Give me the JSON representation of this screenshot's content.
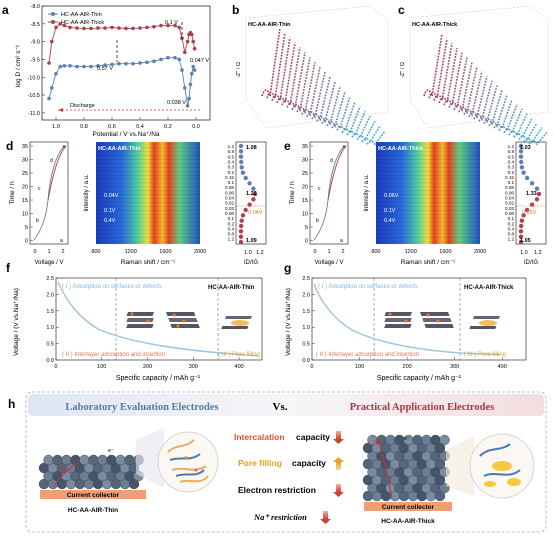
{
  "panels": {
    "a": "a",
    "b": "b",
    "c": "c",
    "d": "d",
    "e": "e",
    "f": "f",
    "g": "g",
    "h": "h"
  },
  "colors": {
    "thin": "#5b7fb0",
    "thick": "#b04050",
    "orange": "#e07a30",
    "bluebar": "#6f8fbf",
    "redbar": "#b03a4a"
  },
  "panel_a": {
    "legend_thin": "HC-AA-AIR-Thin",
    "legend_thick": "HC-AA-AIR-Thick",
    "ylabel": "log D / cm² s⁻¹",
    "xlabel": "Potential / V vs.Na⁺/Na",
    "annot_01": "0.1 V",
    "annot_057": "0.57 V",
    "annot_0047": "0.047 V",
    "annot_0038": "0.038 V",
    "discharge": "Discharge"
  },
  "chart_data": [
    {
      "type": "line",
      "title": "",
      "xlabel": "Potential / V vs.Na⁺/Na",
      "ylabel": "log D / cm² s⁻¹",
      "xlim": [
        1.1,
        -0.1
      ],
      "ylim": [
        -11.2,
        -8.0
      ],
      "x_ticks": [
        "1.0",
        "0.8",
        "0.6",
        "0.4",
        "0.2",
        "0.0"
      ],
      "y_ticks": [
        "-8.0",
        "-8.5",
        "-9.0",
        "-9.5",
        "-10.0",
        "-10.5",
        "-11.0"
      ],
      "series": [
        {
          "name": "HC-AA-AIR-Thick",
          "x": [
            1.05,
            1.03,
            1.0,
            0.97,
            0.94,
            0.9,
            0.85,
            0.8,
            0.75,
            0.7,
            0.65,
            0.6,
            0.55,
            0.5,
            0.45,
            0.4,
            0.35,
            0.3,
            0.25,
            0.2,
            0.15,
            0.12,
            0.1,
            0.08,
            0.06,
            0.05,
            0.04,
            0.03,
            0.02,
            0.01
          ],
          "y": [
            -9.6,
            -9.0,
            -8.6,
            -8.5,
            -8.55,
            -8.6,
            -8.62,
            -8.63,
            -8.63,
            -8.62,
            -8.62,
            -8.6,
            -8.62,
            -8.63,
            -8.63,
            -8.62,
            -8.6,
            -8.58,
            -8.55,
            -8.55,
            -8.55,
            -8.6,
            -8.9,
            -9.3,
            -9.0,
            -8.8,
            -8.75,
            -8.8,
            -9.0,
            -9.2
          ]
        },
        {
          "name": "HC-AA-AIR-Thin",
          "x": [
            1.05,
            1.03,
            1.0,
            0.97,
            0.94,
            0.9,
            0.85,
            0.8,
            0.75,
            0.7,
            0.65,
            0.6,
            0.55,
            0.5,
            0.45,
            0.4,
            0.35,
            0.3,
            0.25,
            0.2,
            0.15,
            0.12,
            0.1,
            0.08,
            0.06,
            0.05,
            0.04,
            0.03,
            0.02,
            0.01
          ],
          "y": [
            -10.6,
            -10.3,
            -9.9,
            -9.7,
            -9.68,
            -9.68,
            -9.7,
            -9.7,
            -9.7,
            -9.68,
            -9.66,
            -9.64,
            -9.62,
            -9.62,
            -9.62,
            -9.6,
            -9.58,
            -9.55,
            -9.5,
            -9.45,
            -9.45,
            -9.5,
            -9.8,
            -10.3,
            -10.8,
            -10.6,
            -10.2,
            -9.9,
            -9.7,
            -9.8
          ]
        }
      ]
    }
  ],
  "panel_b": {
    "label": "HC-AA-AIR-Thin",
    "ylabel": "-Z'' / Ω"
  },
  "panel_c": {
    "label": "HC-AA-AIR-Thick",
    "ylabel": "-Z'' / Ω"
  },
  "panel_d": {
    "map_label": "HC-AA-AIR-Thin",
    "time_label": "Time / h",
    "volt_label": "Voltage / V",
    "raman_label": "Raman shift / cm⁻¹",
    "intensity_label": "Intensity / a.u.",
    "idig_label": "ID/IG",
    "v1": "0.04V",
    "v2": "0.1V",
    "v3": "0.4V",
    "r1": "1.08",
    "r2": "1.22",
    "r3": "1.09",
    "rv": "0.04V",
    "time_ticks": [
      "35",
      "30",
      "25",
      "20",
      "15",
      "10",
      "5",
      "0"
    ],
    "volt_ticks": [
      "0",
      "1",
      "2"
    ],
    "raman_ticks": [
      "800",
      "1200",
      "1600",
      "2000"
    ],
    "idig_ticks": [
      "1.0",
      "1.2"
    ],
    "vseries": [
      "1.2",
      "0.8",
      "0.6",
      "0.4",
      "0.3",
      "0.2",
      "0.15",
      "0.1",
      "0.08",
      "0.06",
      "0.04",
      "0.02",
      "0.03",
      "0.06",
      "0.1",
      "0.2",
      "0.4",
      "0.8",
      "1.2"
    ]
  },
  "panel_e": {
    "map_label": "HC-AA-AIR-Thick",
    "v1": "0.06V",
    "v2": "0.1V",
    "v3": "0.4V",
    "r1": "1.03",
    "r2": "1.33",
    "r3": "1.05",
    "rv": "0.05V"
  },
  "panel_f": {
    "ylabel": "Voltage / (V vs.Na⁺/Na)",
    "xlabel": "Specific capacity / mAh g⁻¹",
    "title": "HC-AA-AIR-Thin",
    "stage1": "( I ) Adsorption on surfaces or defects",
    "stage2": "( II ) Interlayer adsorption and insertion",
    "stage3": "( III ) Pore filling",
    "x_ticks": [
      "0",
      "100",
      "200",
      "300",
      "400"
    ],
    "y_ticks": [
      "2.5",
      "2.0",
      "1.5",
      "1.0",
      "0.5",
      "0.0"
    ]
  },
  "panel_g": {
    "title": "HC-AA-AIR-Thick",
    "stage3": "( III ) Pore filling"
  },
  "panel_h": {
    "left_title": "Laboratory Evaluation Electrodes",
    "vs": "Vs.",
    "right_title": "Practical Application Electrodes",
    "intercalation": "Intercalation",
    "capacity1": "capacity",
    "pore": "Pore filling",
    "capacity2": "capacity",
    "electron": "Electron restriction",
    "na": "Na⁺ restriction",
    "cc_left": "Current collector",
    "cc_right": "Current collector",
    "name_left": "HC-AA-AIR-Thin",
    "name_right": "HC-AA-AIR-Thick",
    "na_ion": "Na⁺",
    "electron_sym": "e⁻"
  }
}
